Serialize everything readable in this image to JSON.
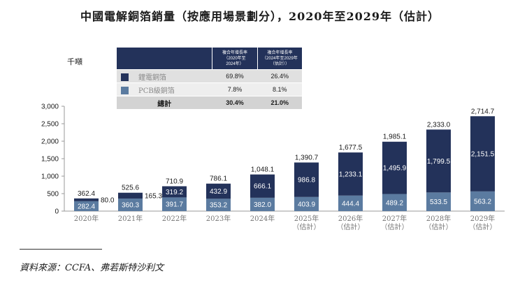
{
  "title": "中國電解銅箔銷量（按應用場景劃分），2020年至2029年（估計）",
  "unit": "千噸",
  "colors": {
    "lithium": "#23325a",
    "pcb": "#5b7ba0",
    "axis": "#999999"
  },
  "cagr_table": {
    "headers": [
      "複合年增長率\n（2020年至\n2024年）",
      "複合年增長率\n（2024年至2029年\n（估計））"
    ],
    "rows": [
      {
        "label": "鋰電銅箔",
        "v1": "69.8%",
        "v2": "26.4%",
        "swatch": "#23325a"
      },
      {
        "label": "PCB級銅箔",
        "v1": "7.8%",
        "v2": "8.1%",
        "swatch": "#5b7ba0"
      }
    ],
    "total": {
      "label": "總計",
      "v1": "30.4%",
      "v2": "21.0%"
    }
  },
  "chart_data": {
    "type": "bar",
    "stacked": true,
    "categories": [
      "2020年",
      "2021年",
      "2022年",
      "2023年",
      "2024年",
      "2025年\n（估計）",
      "2026年\n（估計）",
      "2027年\n（估計）",
      "2028年\n（估計）",
      "2029年\n（估計）"
    ],
    "series": [
      {
        "name": "PCB級銅箔",
        "values": [
          282.4,
          360.3,
          391.7,
          353.2,
          382.0,
          403.9,
          444.4,
          489.2,
          533.5,
          563.2
        ],
        "labels": [
          "282.4",
          "360.3",
          "391.7",
          "353.2",
          "382.0",
          "403.9",
          "444.4",
          "489.2",
          "533.5",
          "563.2"
        ]
      },
      {
        "name": "鋰電銅箔",
        "values": [
          80.0,
          165.3,
          319.2,
          432.9,
          666.1,
          986.8,
          1233.1,
          1495.9,
          1799.5,
          2151.5
        ],
        "labels": [
          "80.0",
          "165.3",
          "319.2",
          "432.9",
          "666.1",
          "986.8",
          "1,233.1",
          "1,495.9",
          "1,799.5",
          "2,151.5"
        ]
      }
    ],
    "totals": [
      "362.4",
      "525.6",
      "710.9",
      "786.1",
      "1,048.1",
      "1,390.7",
      "1,677.5",
      "1,985.1",
      "2,333.0",
      "2,714.7"
    ],
    "yticks": [
      0,
      500,
      1000,
      1500,
      2000,
      2500,
      3000
    ],
    "ytick_labels": [
      "0",
      "500",
      "1,000",
      "1,500",
      "2,000",
      "2,500",
      "3,000"
    ],
    "ylim": [
      0,
      3000
    ],
    "xlabel": "",
    "ylabel": ""
  },
  "source": "資料來源：CCFA、弗若斯特沙利文"
}
